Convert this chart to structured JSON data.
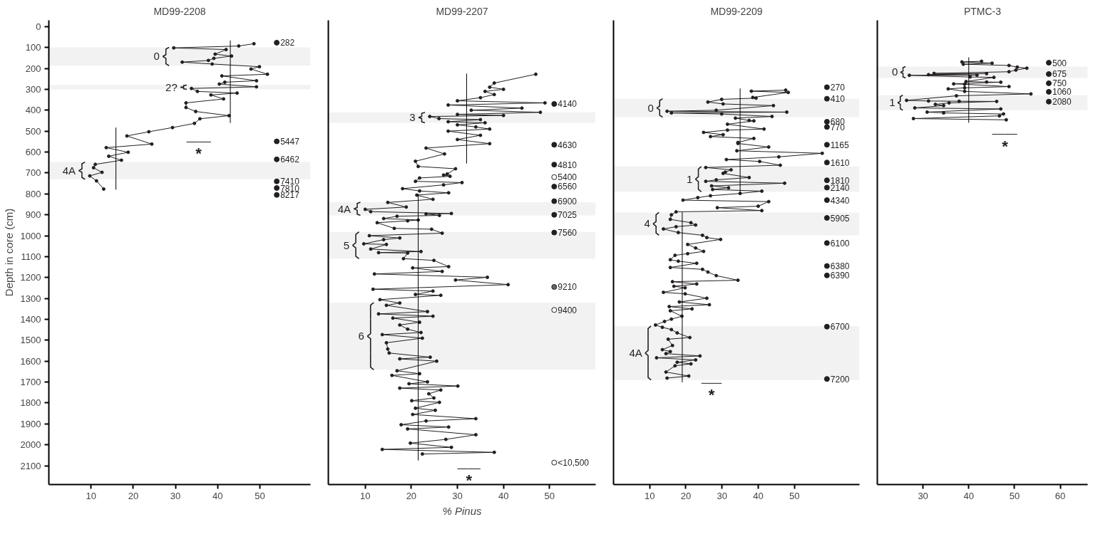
{
  "chart_data": [
    {
      "type": "line",
      "title": "MD99-2208",
      "ylabel": "Depth in core (cm)",
      "marker": "circle",
      "xlim": [
        0,
        62
      ],
      "ylim": [
        2190,
        -30
      ],
      "xticks": [
        10,
        20,
        30,
        40,
        50
      ],
      "yticks": [
        0,
        100,
        200,
        300,
        400,
        500,
        600,
        700,
        800,
        900,
        1000,
        1100,
        1200,
        1300,
        1400,
        1500,
        1600,
        1700,
        1800,
        1900,
        2000,
        2100
      ],
      "series": [
        {
          "color": "#231f20",
          "x": [
            48.6,
            45,
            29.6,
            42,
            39.4,
            43.3,
            39.1,
            37.8,
            31.6,
            38.7,
            49.9,
            47.9,
            51.8,
            41,
            49.2,
            41.7,
            40.4,
            49.2,
            33.8,
            35.2,
            44.6,
            38.4,
            41.4,
            32.5,
            32.5,
            34.8,
            42.7,
            35.8,
            34.5,
            29.3,
            23.7,
            18.5,
            24.4,
            13.6,
            18.8,
            14.2,
            17.2,
            11,
            10.6,
            12.6,
            9.7,
            11.3,
            13
          ],
          "values": [
            82,
            93,
            102,
            110,
            132,
            141,
            152,
            162,
            170,
            179,
            192,
            203,
            228,
            236,
            259,
            266,
            275,
            288,
            296,
            310,
            318,
            327,
            346,
            365,
            387,
            406,
            426,
            441,
            463,
            483,
            503,
            523,
            562,
            579,
            601,
            620,
            639,
            659,
            675,
            697,
            714,
            738,
            777
          ]
        },
        {
          "color": "#000000",
          "marker": "none",
          "x": [
            43,
            43
          ],
          "values": [
            66,
            461
          ]
        },
        {
          "color": "#000000",
          "marker": "none",
          "x": [
            15.9,
            15.9
          ],
          "values": [
            483,
            780
          ]
        },
        {
          "color": "#231f20",
          "marker": "none",
          "x": [
            32.6,
            35.5,
            38.4
          ],
          "values": [
            552,
            552,
            552
          ],
          "value_labels": [
            null,
            "*",
            null
          ]
        },
        {
          "type": "scatter",
          "color": "#231f20",
          "x": [
            54,
            54,
            54,
            54,
            54,
            54
          ],
          "values": [
            77,
            549,
            635,
            740,
            772,
            805
          ],
          "colors": [
            "#231f20",
            "#231f20",
            "#231f20",
            "#231f20",
            "#231f20",
            "#231f20"
          ]
        }
      ],
      "bands": [
        {
          "axis": "y",
          "from": 99,
          "to": 187,
          "label": "0"
        },
        {
          "axis": "y",
          "from": 280,
          "to": 300,
          "label": "2?"
        },
        {
          "axis": "y",
          "from": 648,
          "to": 730,
          "label": "4A"
        }
      ],
      "annotations": [
        {
          "text": "282",
          "x": 54,
          "y": 77
        },
        {
          "text": "5447",
          "x": 54,
          "y": 549
        },
        {
          "text": "6462",
          "x": 54,
          "y": 635
        },
        {
          "text": "7410",
          "x": 54,
          "y": 740
        },
        {
          "text": "7810",
          "x": 54,
          "y": 772
        },
        {
          "text": "8217",
          "x": 54,
          "y": 805
        }
      ]
    },
    {
      "type": "line",
      "title": "MD99-2207",
      "xlabel": "% Pinus",
      "marker": "circle",
      "tick_labels": "x",
      "xlim": [
        2,
        60
      ],
      "ylim": [
        2190,
        -30
      ],
      "xticks": [
        10,
        20,
        30,
        40,
        50
      ],
      "series": [
        {
          "color": "#231f20",
          "x": [
            47,
            38,
            37,
            40,
            36,
            38,
            35,
            30,
            49,
            28,
            44,
            33,
            48,
            30,
            40,
            24,
            26,
            35,
            28,
            36,
            30,
            34,
            37,
            28,
            35,
            30,
            37,
            23.2,
            27.2,
            20.9,
            21.5,
            29.6,
            27.8,
            27,
            28.4,
            21.8,
            20.9,
            31,
            27,
            18.1,
            21.8,
            28.1,
            21.2,
            24.7,
            14.9,
            18.9,
            10,
            11.2,
            28.7,
            23.2,
            26.1,
            16.9,
            14,
            21.5,
            19.2,
            12.6,
            16.3,
            24.4,
            26.7,
            10.9,
            17.5,
            14,
            9.7,
            14.6,
            11.2,
            22.1,
            12.9,
            19.2,
            18.3,
            24.9,
            28.1,
            20.3,
            26.7,
            12,
            36.5,
            29.6,
            41,
            11.7,
            24.7,
            20.9,
            26.4,
            13.2,
            17.5,
            14.6,
            23.5,
            12.9,
            24.7,
            16,
            21.8,
            17.5,
            19.2,
            22.1,
            13.7,
            22.4,
            14.6,
            14.9,
            15.2,
            24.1,
            17.5,
            25.5,
            16.9,
            21.8,
            15.8,
            23.5,
            19.5,
            30.1,
            17.5,
            26.4,
            23.8,
            24.9,
            20.1,
            26.1,
            20.9,
            25.2,
            20.3,
            34,
            23.2,
            17.8,
            28.1,
            19.2,
            34,
            27.5,
            19.8,
            28.7,
            13.7,
            38,
            22.4
          ],
          "values": [
            228,
            270,
            290,
            300,
            310,
            325,
            340,
            355,
            365,
            375,
            390,
            400,
            410,
            420,
            425,
            430,
            440,
            445,
            455,
            460,
            470,
            480,
            490,
            500,
            520,
            540,
            560,
            581,
            609,
            644,
            669,
            680,
            705,
            710,
            716,
            724,
            740,
            746,
            757,
            775,
            786,
            795,
            806,
            826,
            841,
            863,
            874,
            885,
            894,
            896,
            903,
            907,
            918,
            925,
            929,
            938,
            965,
            969,
            988,
            1000,
            1011,
            1019,
            1039,
            1042,
            1064,
            1076,
            1081,
            1083,
            1110,
            1118,
            1148,
            1154,
            1171,
            1183,
            1199,
            1212,
            1234,
            1256,
            1265,
            1281,
            1285,
            1306,
            1322,
            1333,
            1363,
            1374,
            1385,
            1394,
            1414,
            1427,
            1447,
            1463,
            1473,
            1490,
            1512,
            1542,
            1561,
            1581,
            1589,
            1600,
            1646,
            1660,
            1668,
            1699,
            1708,
            1719,
            1729,
            1738,
            1756,
            1776,
            1789,
            1797,
            1825,
            1835,
            1855,
            1875,
            1886,
            1904,
            1915,
            1924,
            1952,
            1974,
            1992,
            2012,
            2022,
            2036,
            2044
          ]
        },
        {
          "color": "#000000",
          "marker": "none",
          "x": [
            32,
            32
          ],
          "values": [
            225,
            655
          ]
        },
        {
          "color": "#000000",
          "marker": "none",
          "x": [
            21.5,
            21.5
          ],
          "values": [
            800,
            2075
          ]
        },
        {
          "color": "#231f20",
          "marker": "none",
          "x": [
            30,
            32.5,
            35
          ],
          "values": [
            2115,
            2115,
            2115
          ],
          "value_labels": [
            null,
            "*",
            null
          ]
        },
        {
          "type": "scatter",
          "color": "#231f20",
          "x": [
            51,
            51,
            51,
            51,
            51,
            51,
            51,
            51,
            51,
            51,
            51
          ],
          "values": [
            370,
            565,
            660,
            720,
            765,
            835,
            900,
            985,
            1245,
            1355,
            2085
          ],
          "colors": [
            "#231f20",
            "#231f20",
            "#231f20",
            "#ffffff",
            "#231f20",
            "#231f20",
            "#231f20",
            "#231f20",
            "#666666",
            "#ffffff",
            "#ffffff"
          ]
        }
      ],
      "bands": [
        {
          "axis": "y",
          "from": 410,
          "to": 460,
          "label": "3"
        },
        {
          "axis": "y",
          "from": 840,
          "to": 903,
          "label": "4A"
        },
        {
          "axis": "y",
          "from": 982,
          "to": 1110,
          "label": "5"
        },
        {
          "axis": "y",
          "from": 1320,
          "to": 1641,
          "label": "6"
        }
      ],
      "annotations": [
        {
          "text": "4140",
          "x": 51,
          "y": 370
        },
        {
          "text": "4630",
          "x": 51,
          "y": 565
        },
        {
          "text": "4810",
          "x": 51,
          "y": 660
        },
        {
          "text": "5400",
          "x": 51,
          "y": 720
        },
        {
          "text": "6560",
          "x": 51,
          "y": 765
        },
        {
          "text": "6900",
          "x": 51,
          "y": 835
        },
        {
          "text": "7025",
          "x": 51,
          "y": 900
        },
        {
          "text": "7560",
          "x": 51,
          "y": 985
        },
        {
          "text": "9210",
          "x": 51,
          "y": 1245
        },
        {
          "text": "9400",
          "x": 51,
          "y": 1355
        },
        {
          "text": "<10,500",
          "x": 51,
          "y": 2085
        }
      ]
    },
    {
      "type": "line",
      "title": "MD99-2209",
      "marker": "circle",
      "tick_labels": "x",
      "xlim": [
        0,
        68
      ],
      "ylim": [
        2190,
        -30
      ],
      "xticks": [
        10,
        20,
        30,
        40,
        50
      ],
      "series": [
        {
          "color": "#231f20",
          "x": [
            47.6,
            38.1,
            48.3,
            38.5,
            39.4,
            29.9,
            26.1,
            30.3,
            44.2,
            28.4,
            14.8,
            47.9,
            16,
            29.9,
            43.8,
            33.7,
            37.5,
            38.8,
            31.5,
            41.6,
            31.5,
            24.9,
            30.3,
            26.8,
            38.8,
            34.4,
            34.4,
            42.9,
            34.1,
            57.7,
            45.7,
            31.2,
            40.4,
            46.1,
            25.5,
            32.5,
            30.9,
            30.3,
            37.5,
            28.4,
            25.5,
            47.3,
            27.1,
            31.8,
            27.4,
            41,
            35,
            26.8,
            23.3,
            19.2,
            42.9,
            40,
            28.7,
            41,
            17.3,
            16,
            15.7,
            21.4,
            22.7,
            17.3,
            13.8,
            17.9,
            24.6,
            25.8,
            29.6,
            20.5,
            22.7,
            24.9,
            20.5,
            17,
            15.7,
            17.9,
            23,
            15.7,
            24.6,
            26.1,
            28.4,
            34.4,
            16.3,
            23,
            16.7,
            19.8,
            13.8,
            19.8,
            25.8,
            18.2,
            26.5,
            15.4,
            21.7,
            15.7,
            18.9,
            16,
            14.1,
            11.6,
            13.5,
            16,
            17.6,
            21.1,
            15.1,
            16.3,
            13.5,
            15.7,
            14.5,
            23.9,
            11.9,
            22.7,
            17.6,
            21.4,
            17,
            14.5,
            20.8,
            14.8
          ],
          "values": [
            304,
            309,
            315,
            339,
            342,
            348,
            361,
            370,
            378,
            400,
            405,
            409,
            413,
            418,
            430,
            438,
            449,
            451,
            467,
            490,
            495,
            506,
            517,
            526,
            535,
            554,
            559,
            576,
            594,
            606,
            623,
            636,
            645,
            663,
            674,
            685,
            696,
            702,
            722,
            733,
            740,
            749,
            762,
            771,
            779,
            787,
            798,
            809,
            818,
            830,
            837,
            859,
            866,
            880,
            886,
            900,
            922,
            938,
            949,
            957,
            968,
            985,
            998,
            1009,
            1018,
            1042,
            1059,
            1075,
            1086,
            1094,
            1115,
            1122,
            1132,
            1152,
            1161,
            1174,
            1191,
            1213,
            1220,
            1231,
            1242,
            1249,
            1271,
            1278,
            1299,
            1317,
            1330,
            1339,
            1350,
            1359,
            1385,
            1399,
            1410,
            1427,
            1438,
            1449,
            1465,
            1487,
            1495,
            1525,
            1545,
            1554,
            1564,
            1575,
            1584,
            1594,
            1605,
            1613,
            1622,
            1652,
            1671,
            1681
          ]
        },
        {
          "color": "#000000",
          "marker": "none",
          "x": [
            35,
            35
          ],
          "values": [
            296,
            801
          ]
        },
        {
          "color": "#000000",
          "marker": "none",
          "x": [
            19,
            19
          ],
          "values": [
            888,
            1701
          ]
        },
        {
          "color": "#231f20",
          "marker": "none",
          "x": [
            24.3,
            27.1,
            29.9
          ],
          "values": [
            1706,
            1706,
            1706
          ],
          "value_labels": [
            null,
            "*",
            null
          ]
        },
        {
          "type": "scatter",
          "color": "#231f20",
          "x": [
            59,
            59,
            59,
            59,
            59,
            59,
            59,
            59,
            59,
            59,
            59,
            59,
            59,
            59,
            59
          ],
          "values": [
            290,
            345,
            455,
            480,
            565,
            650,
            735,
            770,
            830,
            915,
            1035,
            1145,
            1190,
            1435,
            1685
          ],
          "colors": [
            "#231f20",
            "#231f20",
            "#231f20",
            "#231f20",
            "#231f20",
            "#231f20",
            "#231f20",
            "#231f20",
            "#231f20",
            "#231f20",
            "#231f20",
            "#231f20",
            "#231f20",
            "#231f20",
            "#231f20"
          ]
        }
      ],
      "bands": [
        {
          "axis": "y",
          "from": 345,
          "to": 433,
          "label": "0"
        },
        {
          "axis": "y",
          "from": 669,
          "to": 790,
          "label": "1"
        },
        {
          "axis": "y",
          "from": 889,
          "to": 998,
          "label": "4"
        },
        {
          "axis": "y",
          "from": 1432,
          "to": 1690,
          "label": "4A"
        }
      ],
      "annotations": [
        {
          "text": "270",
          "x": 59,
          "y": 290
        },
        {
          "text": "410",
          "x": 59,
          "y": 345
        },
        {
          "text": "680",
          "x": 59,
          "y": 455
        },
        {
          "text": "770",
          "x": 59,
          "y": 480
        },
        {
          "text": "1165",
          "x": 59,
          "y": 565
        },
        {
          "text": "1610",
          "x": 59,
          "y": 650
        },
        {
          "text": "1810",
          "x": 59,
          "y": 735
        },
        {
          "text": "2140",
          "x": 59,
          "y": 770
        },
        {
          "text": "4340",
          "x": 59,
          "y": 830
        },
        {
          "text": "5905",
          "x": 59,
          "y": 915
        },
        {
          "text": "6100",
          "x": 59,
          "y": 1035
        },
        {
          "text": "6380",
          "x": 59,
          "y": 1145
        },
        {
          "text": "6390",
          "x": 59,
          "y": 1190
        },
        {
          "text": "6700",
          "x": 59,
          "y": 1435
        },
        {
          "text": "7200",
          "x": 59,
          "y": 1685
        }
      ]
    },
    {
      "type": "line",
      "title": "PTMC-3",
      "marker": "circle",
      "tick_labels": "x",
      "xlim": [
        20,
        66
      ],
      "ylim": [
        2190,
        -30
      ],
      "xticks": [
        30,
        40,
        50,
        60
      ],
      "series": [
        {
          "color": "#231f20",
          "x": [
            42.8,
            38.5,
            45.1,
            38.8,
            48.8,
            50.6,
            52.7,
            50.3,
            48.8,
            32.4,
            43.9,
            31.2,
            41.8,
            27,
            40.3,
            45.5,
            39.4,
            43.9,
            47,
            36.7,
            39.1,
            48.8,
            39.1,
            35.5,
            39.1,
            53.6,
            37.3,
            26.4,
            31.2,
            37.9,
            46.1,
            35.7,
            32.7,
            34.5,
            28.2,
            47,
            30.9,
            34.5,
            47.6,
            46.7,
            27.9,
            48.2
          ],
          "values": [
            166,
            169,
            175,
            180,
            186,
            194,
            199,
            208,
            216,
            224,
            225,
            230,
            232,
            233,
            241,
            243,
            263,
            265,
            266,
            274,
            276,
            287,
            293,
            298,
            310,
            322,
            331,
            353,
            356,
            357,
            358,
            365,
            372,
            378,
            389,
            394,
            409,
            413,
            418,
            427,
            440,
            446
          ]
        },
        {
          "color": "#000000",
          "marker": "none",
          "x": [
            40,
            40
          ],
          "values": [
            147,
            460
          ]
        },
        {
          "color": "#231f20",
          "marker": "none",
          "x": [
            45.1,
            47.9,
            50.6
          ],
          "values": [
            515,
            515,
            515
          ],
          "value_labels": [
            null,
            "*",
            null
          ]
        },
        {
          "type": "scatter",
          "color": "#231f20",
          "x": [
            57.5,
            57.5,
            57.5,
            57.5,
            57.5
          ],
          "values": [
            173,
            227,
            271,
            312,
            359
          ],
          "colors": [
            "#231f20",
            "#231f20",
            "#231f20",
            "#231f20",
            "#231f20"
          ]
        }
      ],
      "bands": [
        {
          "axis": "y",
          "from": 191,
          "to": 246,
          "label": "0"
        },
        {
          "axis": "y",
          "from": 328,
          "to": 400,
          "label": "1"
        }
      ],
      "annotations": [
        {
          "text": "500",
          "x": 57.5,
          "y": 173
        },
        {
          "text": "675",
          "x": 57.5,
          "y": 227
        },
        {
          "text": "750",
          "x": 57.5,
          "y": 271
        },
        {
          "text": "1060",
          "x": 57.5,
          "y": 312
        },
        {
          "text": "2080",
          "x": 57.5,
          "y": 359
        }
      ]
    }
  ]
}
